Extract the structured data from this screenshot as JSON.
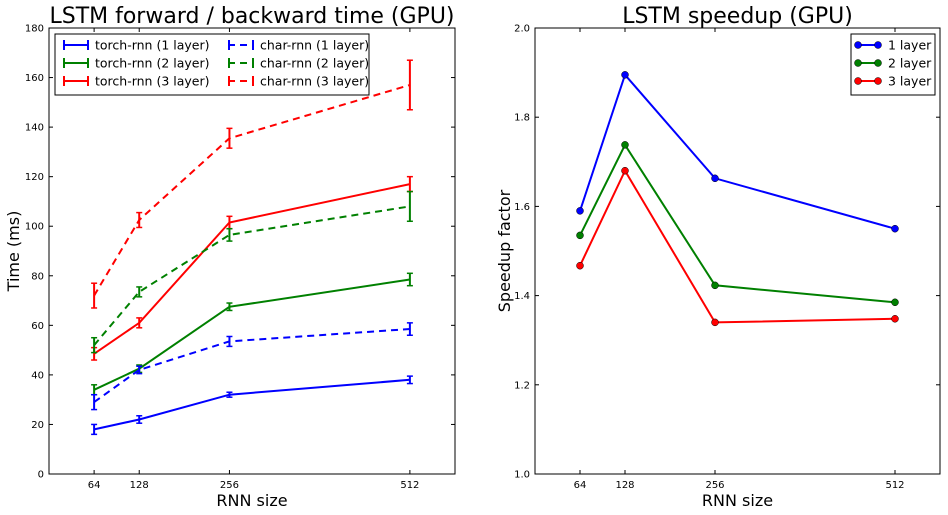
{
  "chart_data": [
    {
      "type": "line",
      "title": "LSTM forward / backward time (GPU)",
      "xlabel": "RNN size",
      "ylabel": "Time (ms)",
      "x": [
        64,
        128,
        256,
        512
      ],
      "x_ticks": [
        64,
        128,
        256,
        512
      ],
      "xlim": [
        0,
        576
      ],
      "ylim": [
        0,
        180
      ],
      "y_ticks": [
        0,
        20,
        40,
        60,
        80,
        100,
        120,
        140,
        160,
        180
      ],
      "grid": false,
      "legend_position": "top-left",
      "legend_columns": 2,
      "error_bars": true,
      "series": [
        {
          "name": "torch-rnn (1 layer)",
          "color": "#0000ff",
          "dashed": false,
          "values": [
            18,
            22,
            32,
            38
          ],
          "errors": [
            2,
            1.5,
            1,
            1.5
          ]
        },
        {
          "name": "torch-rnn (2 layer)",
          "color": "#008000",
          "dashed": false,
          "values": [
            34,
            42.5,
            67.5,
            78.5
          ],
          "errors": [
            2,
            1.5,
            1.5,
            2.5
          ]
        },
        {
          "name": "torch-rnn (3 layer)",
          "color": "#ff0000",
          "dashed": false,
          "values": [
            48.5,
            61,
            101.5,
            117
          ],
          "errors": [
            2.5,
            2,
            2.5,
            3
          ]
        },
        {
          "name": "char-rnn (1 layer)",
          "color": "#0000ff",
          "dashed": true,
          "values": [
            29,
            42,
            53.5,
            58.5
          ],
          "errors": [
            3,
            1.5,
            2,
            2.5
          ]
        },
        {
          "name": "char-rnn (2 layer)",
          "color": "#008000",
          "dashed": true,
          "values": [
            52,
            73.5,
            96.5,
            108
          ],
          "errors": [
            3,
            2,
            2.5,
            6
          ]
        },
        {
          "name": "char-rnn (3 layer)",
          "color": "#ff0000",
          "dashed": true,
          "values": [
            72,
            102.5,
            135.5,
            157
          ],
          "errors": [
            5,
            3,
            4,
            10
          ]
        }
      ]
    },
    {
      "type": "line",
      "title": "LSTM speedup (GPU)",
      "xlabel": "RNN size",
      "ylabel": "Speedup factor",
      "x": [
        64,
        128,
        256,
        512
      ],
      "x_ticks": [
        64,
        128,
        256,
        512
      ],
      "xlim": [
        0,
        576
      ],
      "ylim": [
        1.0,
        2.0
      ],
      "y_ticks": [
        "1.0",
        "1.2",
        "1.4",
        "1.6",
        "1.8",
        "2.0"
      ],
      "grid": false,
      "legend_position": "top-right",
      "markers": "circle",
      "series": [
        {
          "name": "1 layer",
          "color": "#0000ff",
          "values": [
            1.59,
            1.895,
            1.663,
            1.55
          ]
        },
        {
          "name": "2 layer",
          "color": "#008000",
          "values": [
            1.535,
            1.738,
            1.423,
            1.385
          ]
        },
        {
          "name": "3 layer",
          "color": "#ff0000",
          "values": [
            1.467,
            1.68,
            1.34,
            1.348
          ]
        }
      ]
    }
  ]
}
